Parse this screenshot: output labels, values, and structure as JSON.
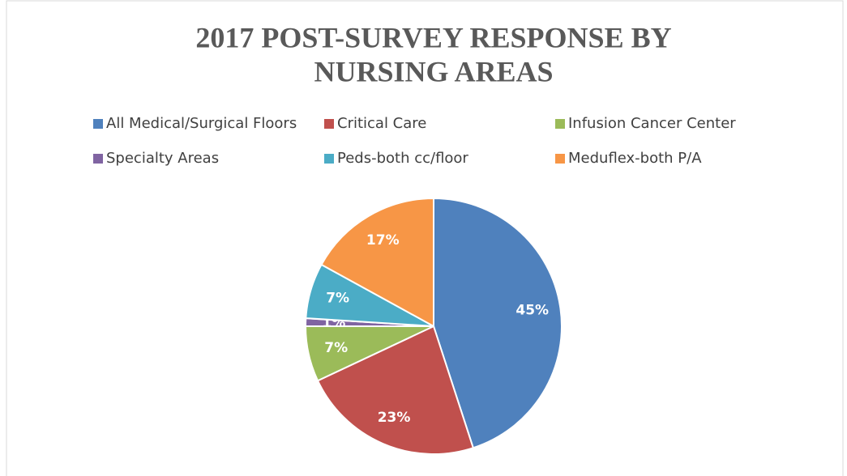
{
  "chart_data": {
    "type": "pie",
    "title": [
      "2017 POST-SURVEY RESPONSE BY",
      "NURSING AREAS"
    ],
    "categories": [
      "All Medical/Surgical Floors",
      "Critical Care",
      "Infusion Cancer Center",
      "Specialty Areas",
      "Peds-both cc/floor",
      "Meduflex-both P/A"
    ],
    "values": [
      45,
      23,
      7,
      1,
      7,
      17
    ],
    "value_labels": [
      "45%",
      "23%",
      "7%",
      "1%",
      "7%",
      "17%"
    ],
    "colors": [
      "#4f81bd",
      "#c0504d",
      "#9bbb59",
      "#8064a2",
      "#4bacc6",
      "#f79646"
    ],
    "legend": "top"
  }
}
